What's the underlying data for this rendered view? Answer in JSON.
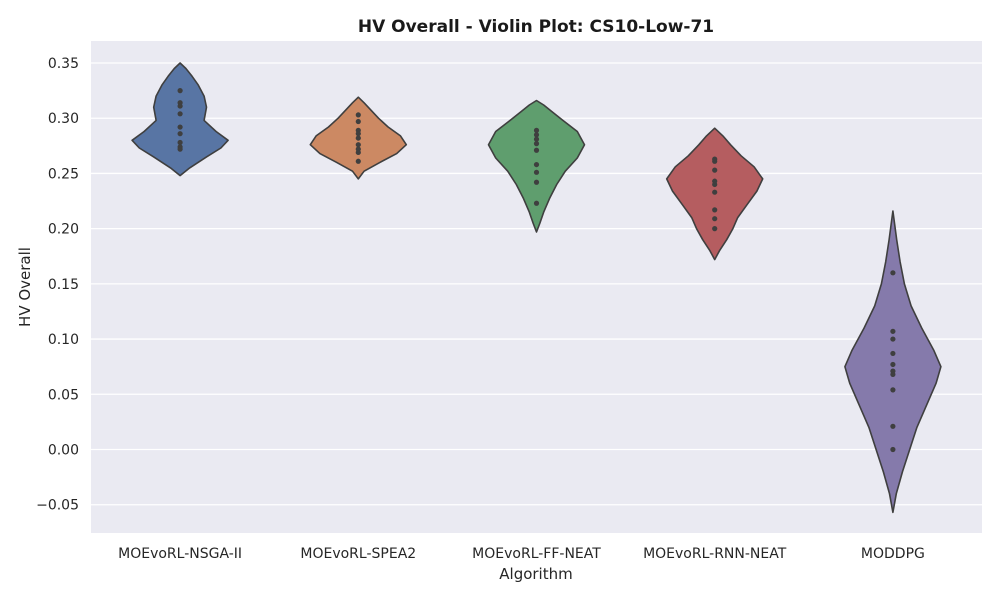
{
  "chart_data": {
    "type": "violin",
    "title": "HV Overall - Violin Plot: CS10-Low-71",
    "xlabel": "Algorithm",
    "ylabel": "HV Overall",
    "ylim": [
      -0.08,
      0.37
    ],
    "yticks": [
      -0.05,
      0.0,
      0.05,
      0.1,
      0.15,
      0.2,
      0.25,
      0.3,
      0.35
    ],
    "ytick_labels": [
      "−0.05",
      "0.00",
      "0.05",
      "0.10",
      "0.15",
      "0.20",
      "0.25",
      "0.30",
      "0.35"
    ],
    "grid": true,
    "categories": [
      "MOEvoRL-NSGA-II",
      "MOEvoRL-SPEA2",
      "MOEvoRL-FF-NEAT",
      "MOEvoRL-RNN-NEAT",
      "MODDPG"
    ],
    "series": [
      {
        "color": "#5875a4",
        "points": [
          0.325,
          0.314,
          0.311,
          0.304,
          0.292,
          0.286,
          0.278,
          0.274,
          0.272
        ],
        "range": [
          0.248,
          0.35
        ],
        "density": [
          [
            0.248,
            0.0
          ],
          [
            0.255,
            0.2
          ],
          [
            0.265,
            0.55
          ],
          [
            0.273,
            0.85
          ],
          [
            0.28,
            1.0
          ],
          [
            0.288,
            0.75
          ],
          [
            0.298,
            0.5
          ],
          [
            0.31,
            0.55
          ],
          [
            0.32,
            0.5
          ],
          [
            0.33,
            0.38
          ],
          [
            0.338,
            0.25
          ],
          [
            0.345,
            0.12
          ],
          [
            0.35,
            0.0
          ]
        ]
      },
      {
        "color": "#cc8963",
        "points": [
          0.303,
          0.297,
          0.289,
          0.286,
          0.282,
          0.276,
          0.272,
          0.269,
          0.261
        ],
        "range": [
          0.245,
          0.319
        ],
        "density": [
          [
            0.245,
            0.0
          ],
          [
            0.252,
            0.12
          ],
          [
            0.26,
            0.45
          ],
          [
            0.268,
            0.8
          ],
          [
            0.276,
            1.0
          ],
          [
            0.284,
            0.88
          ],
          [
            0.292,
            0.62
          ],
          [
            0.3,
            0.42
          ],
          [
            0.308,
            0.25
          ],
          [
            0.314,
            0.12
          ],
          [
            0.319,
            0.0
          ]
        ]
      },
      {
        "color": "#5f9e6e",
        "points": [
          0.289,
          0.285,
          0.281,
          0.277,
          0.271,
          0.258,
          0.251,
          0.242,
          0.223
        ],
        "range": [
          0.197,
          0.316
        ],
        "density": [
          [
            0.197,
            0.0
          ],
          [
            0.205,
            0.07
          ],
          [
            0.215,
            0.15
          ],
          [
            0.228,
            0.28
          ],
          [
            0.24,
            0.42
          ],
          [
            0.252,
            0.6
          ],
          [
            0.264,
            0.85
          ],
          [
            0.276,
            1.0
          ],
          [
            0.288,
            0.85
          ],
          [
            0.298,
            0.55
          ],
          [
            0.306,
            0.32
          ],
          [
            0.312,
            0.15
          ],
          [
            0.316,
            0.0
          ]
        ]
      },
      {
        "color": "#b55d60",
        "points": [
          0.263,
          0.261,
          0.253,
          0.243,
          0.24,
          0.233,
          0.217,
          0.209,
          0.2
        ],
        "range": [
          0.172,
          0.291
        ],
        "density": [
          [
            0.172,
            0.0
          ],
          [
            0.18,
            0.1
          ],
          [
            0.19,
            0.25
          ],
          [
            0.2,
            0.38
          ],
          [
            0.21,
            0.48
          ],
          [
            0.222,
            0.68
          ],
          [
            0.234,
            0.88
          ],
          [
            0.245,
            1.0
          ],
          [
            0.256,
            0.82
          ],
          [
            0.266,
            0.55
          ],
          [
            0.276,
            0.33
          ],
          [
            0.284,
            0.17
          ],
          [
            0.291,
            0.0
          ]
        ]
      },
      {
        "color": "#857aab",
        "points": [
          0.16,
          0.107,
          0.1,
          0.087,
          0.077,
          0.071,
          0.068,
          0.054,
          0.021,
          0.0
        ],
        "range": [
          -0.057,
          0.216
        ],
        "density": [
          [
            -0.057,
            0.0
          ],
          [
            -0.04,
            0.07
          ],
          [
            -0.02,
            0.2
          ],
          [
            0.0,
            0.35
          ],
          [
            0.02,
            0.5
          ],
          [
            0.04,
            0.7
          ],
          [
            0.06,
            0.9
          ],
          [
            0.075,
            1.0
          ],
          [
            0.09,
            0.85
          ],
          [
            0.11,
            0.6
          ],
          [
            0.13,
            0.38
          ],
          [
            0.15,
            0.24
          ],
          [
            0.17,
            0.15
          ],
          [
            0.19,
            0.08
          ],
          [
            0.216,
            0.0
          ]
        ]
      }
    ]
  }
}
